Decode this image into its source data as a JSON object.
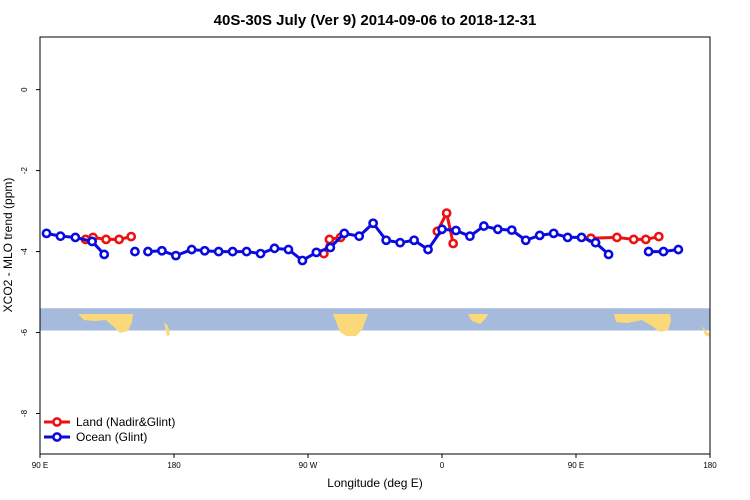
{
  "chart_data": {
    "type": "line",
    "title": "40S-30S July (Ver 9)   2014-09-06 to 2018-12-31",
    "xlabel": "Longitude (deg E)",
    "ylabel": "XCO2 - MLO trend (ppm)",
    "xlim": [
      90,
      450
    ],
    "ylim": [
      -9,
      1.3
    ],
    "x_ticks": [
      {
        "value": 90,
        "label": "90 E"
      },
      {
        "value": 162,
        "label": "180"
      },
      {
        "value": 234,
        "label": "90 W"
      },
      {
        "value": 306,
        "label": "0"
      },
      {
        "value": 378,
        "label": "90 E"
      },
      {
        "value": 450,
        "label": "180"
      }
    ],
    "y_ticks": [
      {
        "value": 0,
        "label": "0"
      },
      {
        "value": -2,
        "label": "-2"
      },
      {
        "value": -4,
        "label": "-4"
      },
      {
        "value": -6,
        "label": "-6"
      },
      {
        "value": -8,
        "label": "-8"
      }
    ],
    "map_band": {
      "ymin": -5.95,
      "ymax": -5.4,
      "ocean_color": "#a6bbdc",
      "land_color": "#fbd97a"
    },
    "series": [
      {
        "name": "Land (Nadir&Glint)",
        "color": "#ee1111",
        "segments": [
          [
            [
              114.5,
              -3.7
            ],
            [
              118.5,
              -3.65
            ],
            [
              125.5,
              -3.7
            ],
            [
              132.5,
              -3.7
            ],
            [
              139,
              -3.63
            ]
          ],
          [
            [
              242.5,
              -4.05
            ],
            [
              245.5,
              -3.7
            ],
            [
              251.5,
              -3.65
            ]
          ],
          [
            [
              303.5,
              -3.5
            ],
            [
              308.5,
              -3.05
            ],
            [
              312,
              -3.8
            ]
          ],
          [
            [
              386,
              -3.67
            ],
            [
              400,
              -3.65
            ],
            [
              409,
              -3.7
            ],
            [
              415.5,
              -3.7
            ],
            [
              422.5,
              -3.63
            ]
          ]
        ]
      },
      {
        "name": "Ocean (Glint)",
        "color": "#0a0ae0",
        "segments": [
          [
            [
              93.5,
              -3.55
            ],
            [
              101,
              -3.62
            ],
            [
              109,
              -3.65
            ],
            [
              118,
              -3.75
            ],
            [
              124.5,
              -4.07
            ]
          ],
          [
            [
              141,
              -4
            ]
          ],
          [
            [
              148,
              -4
            ],
            [
              155.5,
              -3.98
            ],
            [
              163,
              -4.1
            ],
            [
              171.5,
              -3.95
            ],
            [
              178.5,
              -3.98
            ],
            [
              186,
              -4
            ],
            [
              193.5,
              -4
            ],
            [
              201,
              -4
            ],
            [
              208.5,
              -4.05
            ],
            [
              216,
              -3.92
            ],
            [
              223.5,
              -3.95
            ],
            [
              231,
              -4.22
            ],
            [
              238.5,
              -4.02
            ],
            [
              246,
              -3.9
            ],
            [
              253.5,
              -3.55
            ],
            [
              261.5,
              -3.62
            ],
            [
              269,
              -3.3
            ],
            [
              276,
              -3.72
            ],
            [
              283.5,
              -3.78
            ],
            [
              291,
              -3.72
            ],
            [
              298.5,
              -3.95
            ],
            [
              306,
              -3.45
            ],
            [
              313.5,
              -3.48
            ],
            [
              321,
              -3.62
            ],
            [
              328.5,
              -3.37
            ],
            [
              336,
              -3.45
            ],
            [
              343.5,
              -3.47
            ],
            [
              351,
              -3.72
            ],
            [
              358.5,
              -3.6
            ],
            [
              366,
              -3.55
            ],
            [
              373.5,
              -3.65
            ],
            [
              381,
              -3.65
            ],
            [
              388.5,
              -3.78
            ],
            [
              395.5,
              -4.07
            ]
          ],
          [
            [
              417,
              -4
            ],
            [
              425,
              -4
            ],
            [
              433,
              -3.95
            ]
          ]
        ]
      }
    ],
    "legend_position": "bottom-left"
  }
}
